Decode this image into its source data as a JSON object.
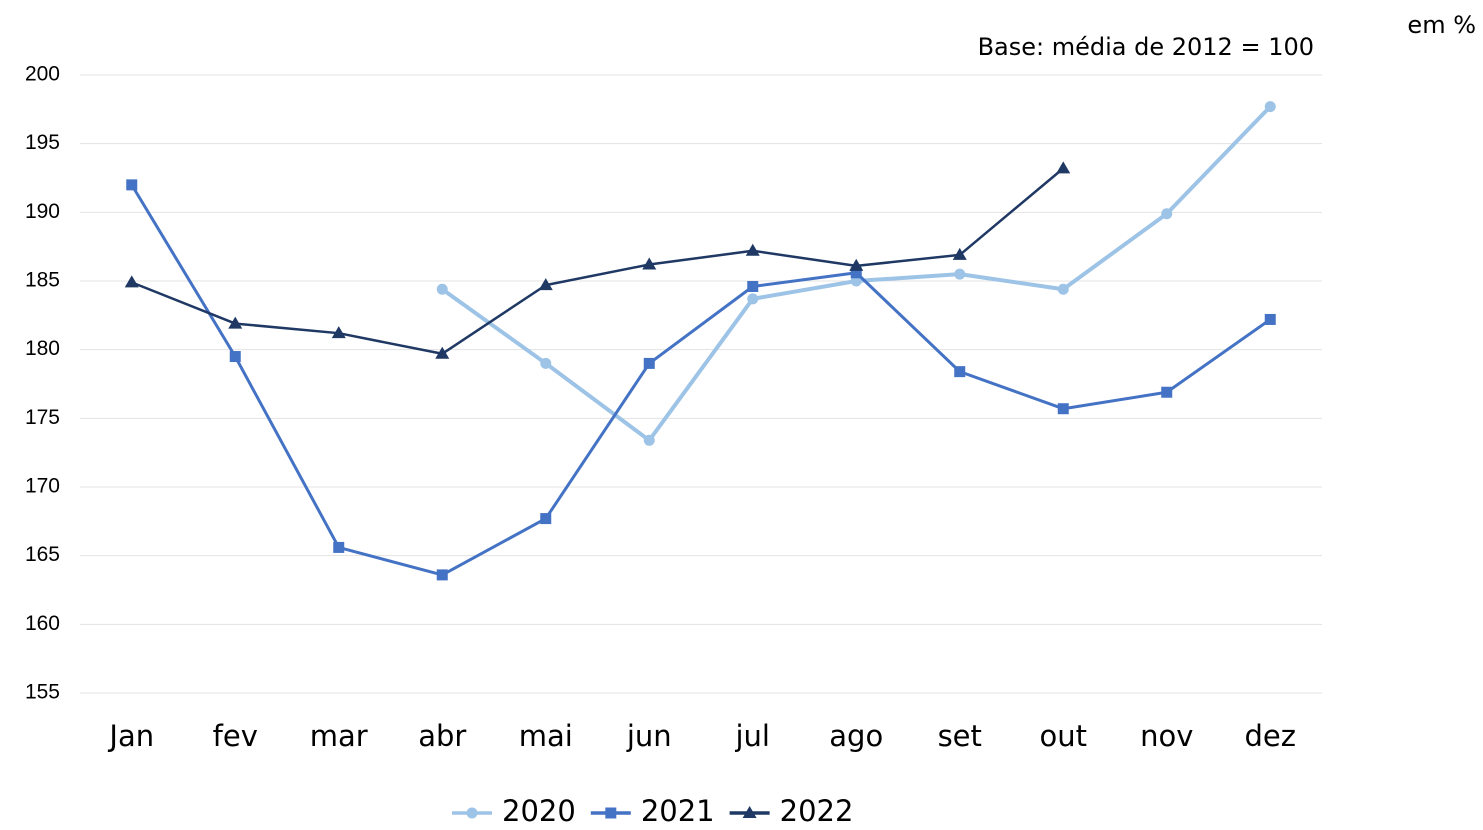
{
  "chart_data": {
    "type": "line",
    "annotations": [
      "em %",
      "Base: média de 2012 = 100"
    ],
    "categories": [
      "Jan",
      "fev",
      "mar",
      "abr",
      "mai",
      "jun",
      "jul",
      "ago",
      "set",
      "out",
      "nov",
      "dez"
    ],
    "series": [
      {
        "name": "2020",
        "color": "#9dc3e6",
        "marker": "circle",
        "values": [
          null,
          null,
          null,
          184.4,
          179.0,
          173.4,
          183.7,
          185.0,
          185.5,
          184.4,
          189.9,
          197.7
        ]
      },
      {
        "name": "2021",
        "color": "#4472c4",
        "marker": "square",
        "values": [
          192.0,
          179.5,
          165.6,
          163.6,
          167.7,
          179.0,
          184.6,
          185.6,
          178.4,
          175.7,
          176.9,
          182.2
        ]
      },
      {
        "name": "2022",
        "color": "#1f3864",
        "marker": "triangle",
        "values": [
          184.9,
          181.9,
          181.2,
          179.7,
          184.7,
          186.2,
          187.2,
          186.1,
          186.9,
          193.2,
          null,
          null
        ]
      }
    ],
    "ylim": [
      155,
      200
    ],
    "yticks": [
      155,
      160,
      165,
      170,
      175,
      180,
      185,
      190,
      195,
      200
    ],
    "grid": true,
    "legend": "bottom"
  }
}
